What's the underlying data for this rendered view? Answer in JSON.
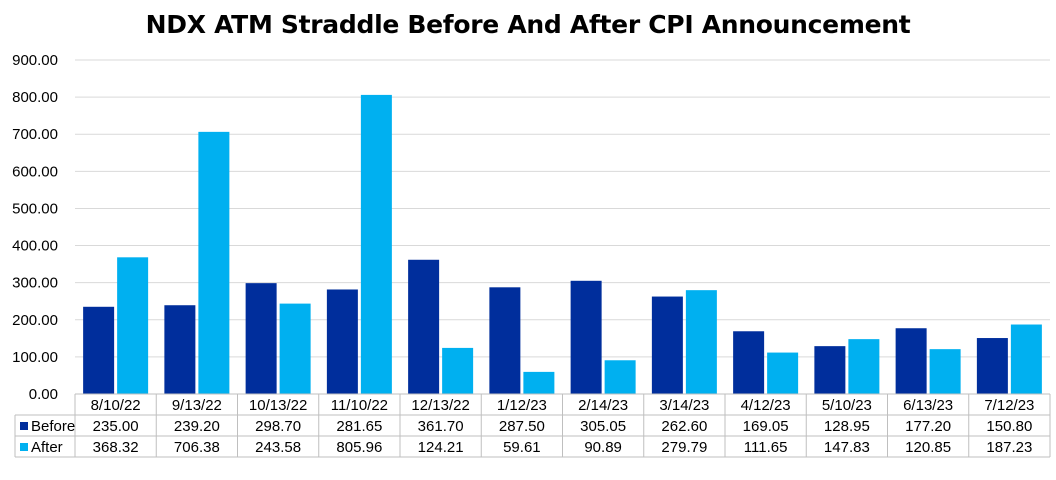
{
  "chart_data": {
    "type": "bar",
    "title": "NDX ATM Straddle Before And After CPI Announcement",
    "categories": [
      "8/10/22",
      "9/13/22",
      "10/13/22",
      "11/10/22",
      "12/13/22",
      "1/12/23",
      "2/14/23",
      "3/14/23",
      "4/12/23",
      "5/10/23",
      "6/13/23",
      "7/12/23"
    ],
    "series": [
      {
        "name": "Before",
        "color": "#002E9C",
        "values": [
          235.0,
          239.2,
          298.7,
          281.65,
          361.7,
          287.5,
          305.05,
          262.6,
          169.05,
          128.95,
          177.2,
          150.8
        ],
        "labels": [
          "235.00",
          "239.20",
          "298.70",
          "281.65",
          "361.70",
          "287.50",
          "305.05",
          "262.60",
          "169.05",
          "128.95",
          "177.20",
          "150.80"
        ]
      },
      {
        "name": "After",
        "color": "#00B0F0",
        "values": [
          368.32,
          706.38,
          243.58,
          805.96,
          124.21,
          59.61,
          90.89,
          279.79,
          111.65,
          147.83,
          120.85,
          187.23
        ],
        "labels": [
          "368.32",
          "706.38",
          "243.58",
          "805.96",
          "124.21",
          "59.61",
          "90.89",
          "279.79",
          "111.65",
          "147.83",
          "120.85",
          "187.23"
        ]
      }
    ],
    "ylim": [
      0,
      900
    ],
    "yticks": [
      "0.00",
      "100.00",
      "200.00",
      "300.00",
      "400.00",
      "500.00",
      "600.00",
      "700.00",
      "800.00",
      "900.00"
    ],
    "grid": true,
    "legend": "data-table"
  }
}
